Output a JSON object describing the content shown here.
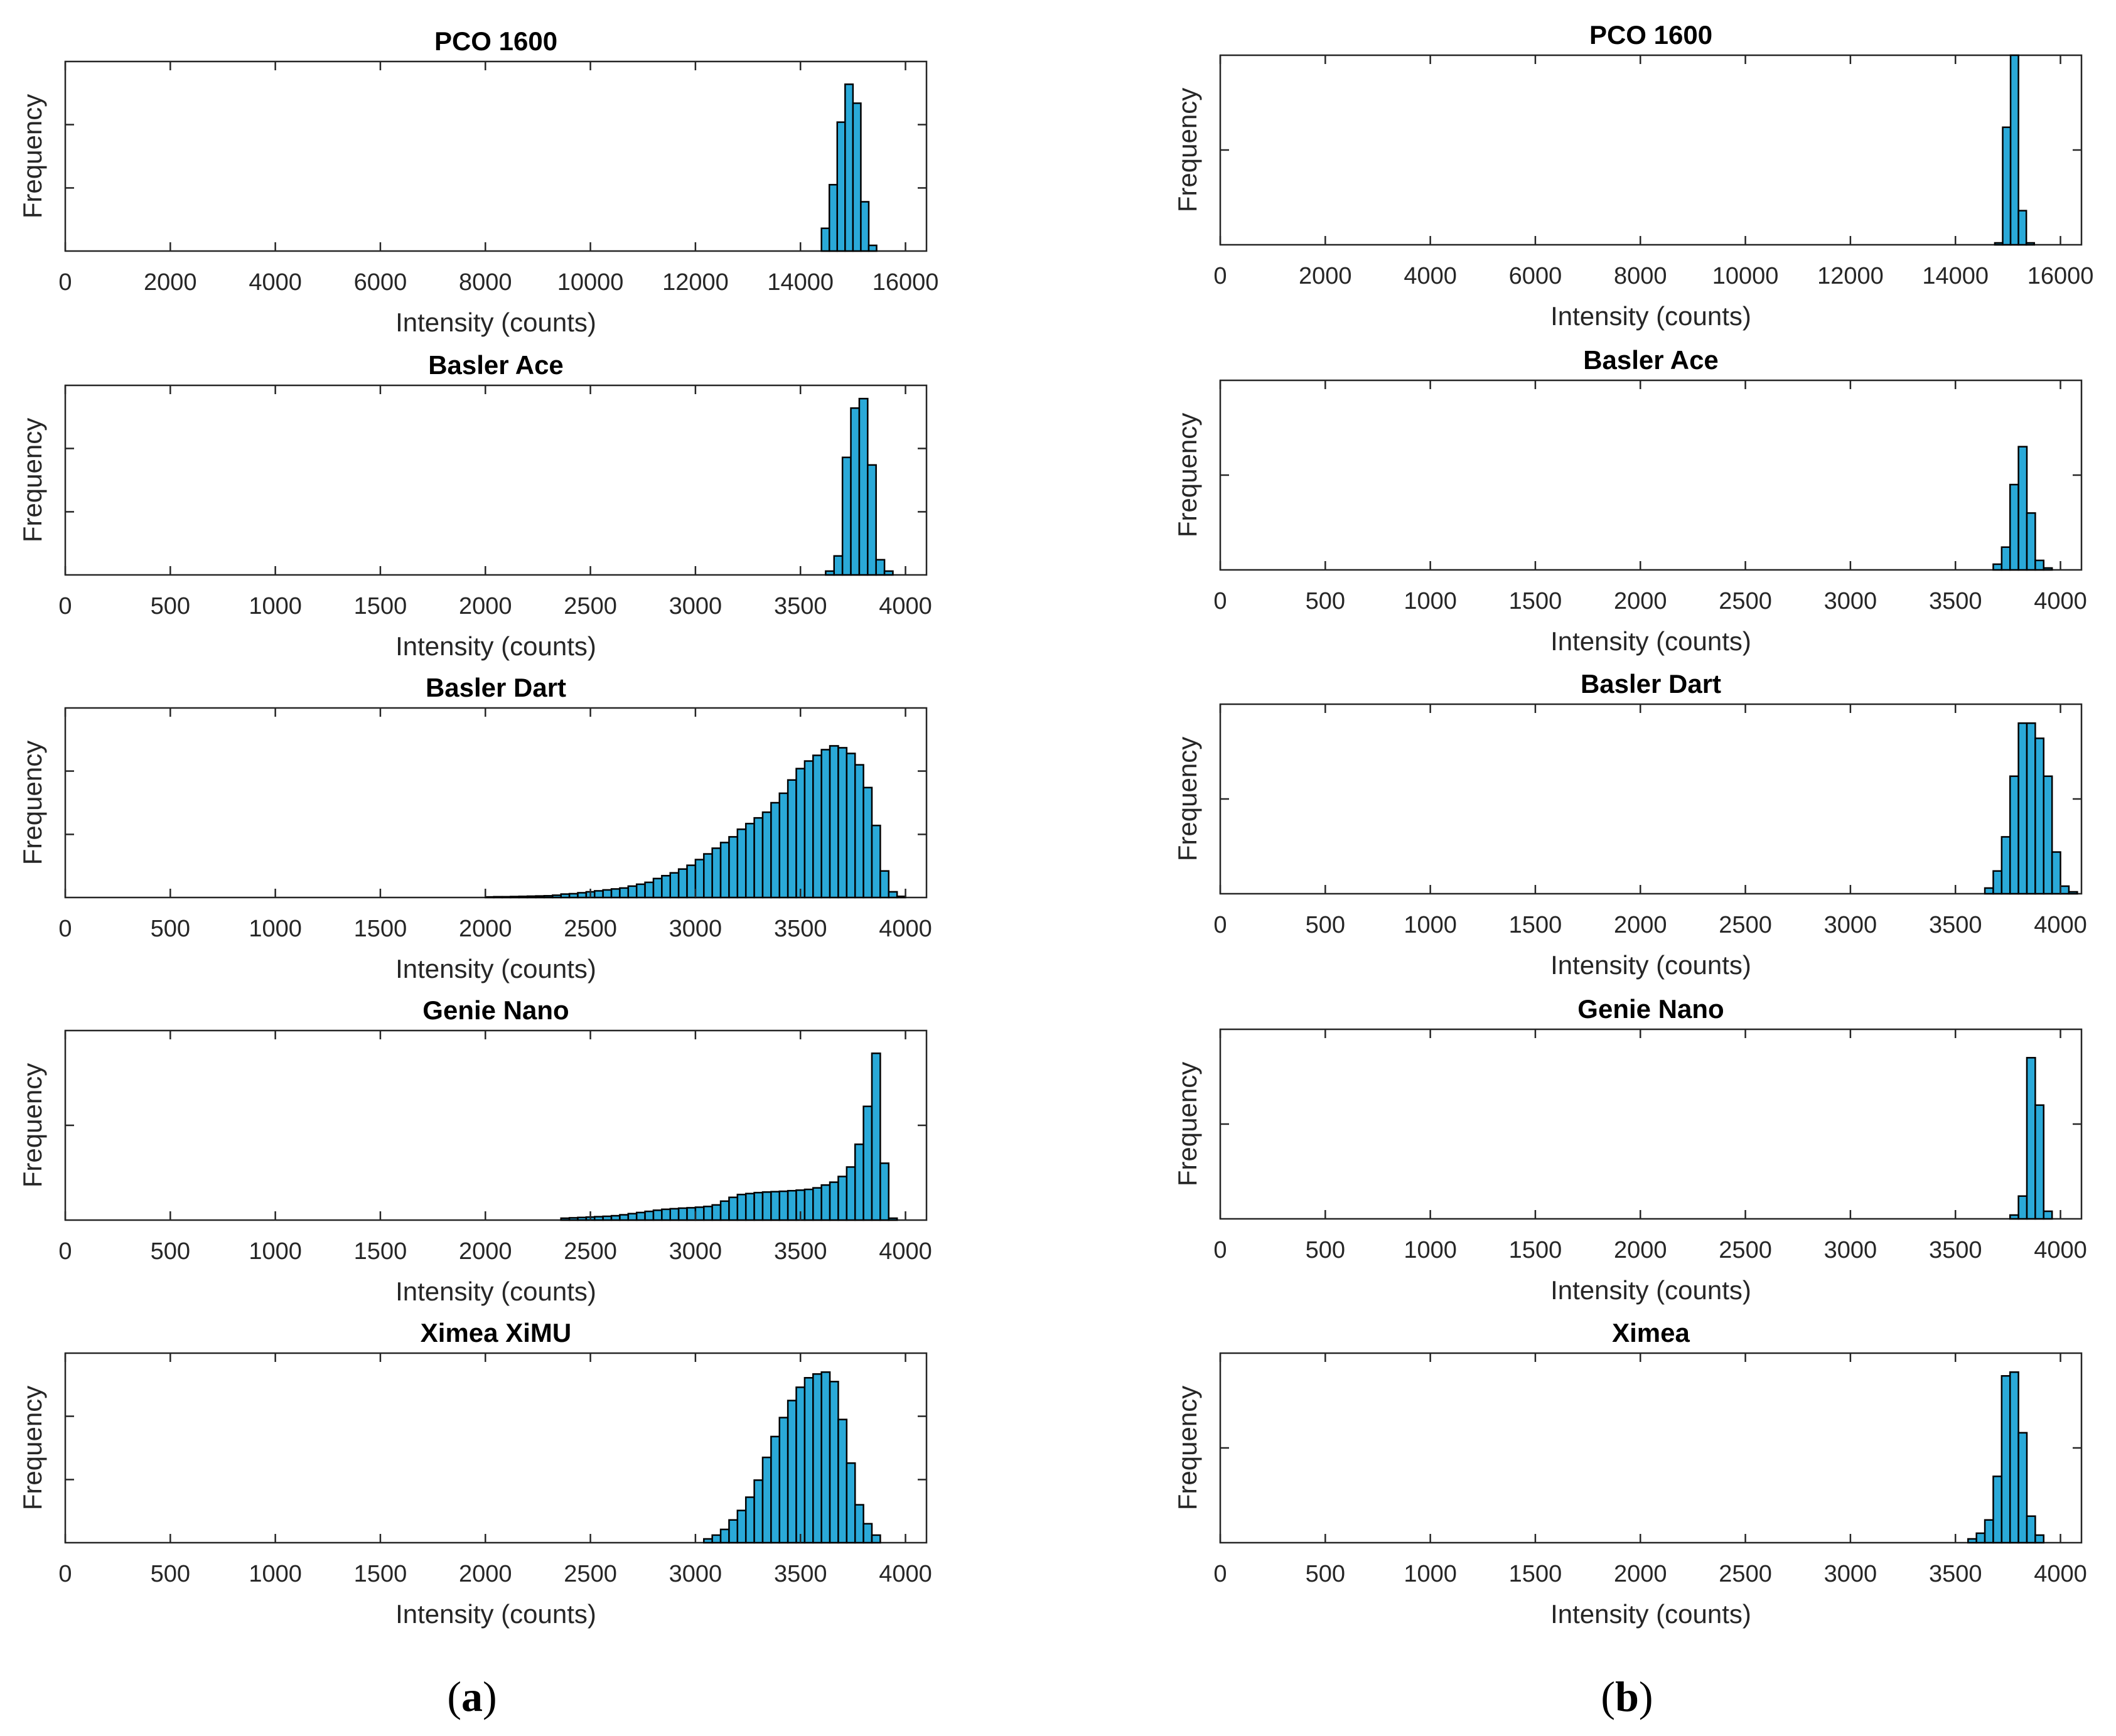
{
  "figure": {
    "panel_a_label": "(a)",
    "panel_a_letter": "a",
    "panel_b_label": "(b)",
    "panel_b_letter": "b",
    "bar_color": "#2aa9d8",
    "paren_open": "(",
    "paren_close": ")"
  },
  "chart_data": [
    {
      "type": "bar",
      "panel": "a",
      "title": "PCO 1600",
      "xlabel": "Intensity (counts)",
      "ylabel": "Frequency",
      "xlim": [
        0,
        16400
      ],
      "ylim": [
        0,
        1.0
      ],
      "xticks": [
        0,
        2000,
        4000,
        6000,
        8000,
        10000,
        12000,
        14000,
        16000
      ],
      "yticks": [
        0.333,
        0.667
      ],
      "bin_width": 150,
      "bins": [
        [
          14400,
          0.12
        ],
        [
          14550,
          0.35
        ],
        [
          14700,
          0.68
        ],
        [
          14850,
          0.88
        ],
        [
          15000,
          0.78
        ],
        [
          15150,
          0.26
        ],
        [
          15300,
          0.03
        ]
      ]
    },
    {
      "type": "bar",
      "panel": "a",
      "title": "Basler Ace",
      "xlabel": "Intensity (counts)",
      "ylabel": "Frequency",
      "xlim": [
        0,
        4100
      ],
      "ylim": [
        0,
        1.0
      ],
      "xticks": [
        0,
        500,
        1000,
        1500,
        2000,
        2500,
        3000,
        3500,
        4000
      ],
      "yticks": [
        0.333,
        0.667
      ],
      "bin_width": 40,
      "bins": [
        [
          3620,
          0.02
        ],
        [
          3660,
          0.1
        ],
        [
          3700,
          0.62
        ],
        [
          3740,
          0.88
        ],
        [
          3780,
          0.93
        ],
        [
          3820,
          0.58
        ],
        [
          3860,
          0.08
        ],
        [
          3900,
          0.02
        ]
      ]
    },
    {
      "type": "bar",
      "panel": "a",
      "title": "Basler Dart",
      "xlabel": "Intensity (counts)",
      "ylabel": "Frequency",
      "xlim": [
        0,
        4100
      ],
      "ylim": [
        0,
        1.0
      ],
      "xticks": [
        0,
        500,
        1000,
        1500,
        2000,
        2500,
        3000,
        3500,
        4000
      ],
      "yticks": [
        0.333,
        0.667
      ],
      "bin_width": 40,
      "bins": [
        [
          2000,
          0.003
        ],
        [
          2040,
          0.004
        ],
        [
          2080,
          0.004
        ],
        [
          2120,
          0.005
        ],
        [
          2160,
          0.006
        ],
        [
          2200,
          0.007
        ],
        [
          2240,
          0.008
        ],
        [
          2280,
          0.009
        ],
        [
          2320,
          0.012
        ],
        [
          2360,
          0.018
        ],
        [
          2400,
          0.02
        ],
        [
          2440,
          0.025
        ],
        [
          2480,
          0.03
        ],
        [
          2520,
          0.035
        ],
        [
          2560,
          0.04
        ],
        [
          2600,
          0.045
        ],
        [
          2640,
          0.05
        ],
        [
          2680,
          0.06
        ],
        [
          2720,
          0.07
        ],
        [
          2760,
          0.08
        ],
        [
          2800,
          0.1
        ],
        [
          2840,
          0.115
        ],
        [
          2880,
          0.13
        ],
        [
          2920,
          0.15
        ],
        [
          2960,
          0.17
        ],
        [
          3000,
          0.2
        ],
        [
          3040,
          0.23
        ],
        [
          3080,
          0.26
        ],
        [
          3120,
          0.29
        ],
        [
          3160,
          0.32
        ],
        [
          3200,
          0.36
        ],
        [
          3240,
          0.39
        ],
        [
          3280,
          0.42
        ],
        [
          3320,
          0.45
        ],
        [
          3360,
          0.5
        ],
        [
          3400,
          0.55
        ],
        [
          3440,
          0.62
        ],
        [
          3480,
          0.68
        ],
        [
          3520,
          0.72
        ],
        [
          3560,
          0.75
        ],
        [
          3600,
          0.78
        ],
        [
          3640,
          0.8
        ],
        [
          3680,
          0.79
        ],
        [
          3720,
          0.76
        ],
        [
          3760,
          0.7
        ],
        [
          3800,
          0.58
        ],
        [
          3840,
          0.38
        ],
        [
          3880,
          0.14
        ],
        [
          3920,
          0.03
        ],
        [
          3960,
          0.006
        ]
      ]
    },
    {
      "type": "bar",
      "panel": "a",
      "title": "Genie Nano",
      "xlabel": "Intensity (counts)",
      "ylabel": "Frequency",
      "xlim": [
        0,
        4100
      ],
      "ylim": [
        0,
        1.0
      ],
      "xticks": [
        0,
        500,
        1000,
        1500,
        2000,
        2500,
        3000,
        3500,
        4000
      ],
      "yticks": [
        0.5
      ],
      "bin_width": 40,
      "bins": [
        [
          2360,
          0.01
        ],
        [
          2400,
          0.012
        ],
        [
          2440,
          0.014
        ],
        [
          2480,
          0.016
        ],
        [
          2520,
          0.018
        ],
        [
          2560,
          0.02
        ],
        [
          2600,
          0.023
        ],
        [
          2640,
          0.028
        ],
        [
          2680,
          0.034
        ],
        [
          2720,
          0.04
        ],
        [
          2760,
          0.046
        ],
        [
          2800,
          0.052
        ],
        [
          2840,
          0.057
        ],
        [
          2880,
          0.06
        ],
        [
          2920,
          0.063
        ],
        [
          2960,
          0.065
        ],
        [
          3000,
          0.068
        ],
        [
          3040,
          0.072
        ],
        [
          3080,
          0.08
        ],
        [
          3120,
          0.1
        ],
        [
          3160,
          0.12
        ],
        [
          3200,
          0.135
        ],
        [
          3240,
          0.14
        ],
        [
          3280,
          0.145
        ],
        [
          3320,
          0.148
        ],
        [
          3360,
          0.15
        ],
        [
          3400,
          0.152
        ],
        [
          3440,
          0.155
        ],
        [
          3480,
          0.158
        ],
        [
          3520,
          0.162
        ],
        [
          3560,
          0.17
        ],
        [
          3600,
          0.185
        ],
        [
          3640,
          0.2
        ],
        [
          3680,
          0.23
        ],
        [
          3720,
          0.28
        ],
        [
          3760,
          0.4
        ],
        [
          3800,
          0.6
        ],
        [
          3840,
          0.88
        ],
        [
          3880,
          0.3
        ],
        [
          3920,
          0.01
        ]
      ]
    },
    {
      "type": "bar",
      "panel": "a",
      "title": "Ximea XiMU",
      "xlabel": "Intensity (counts)",
      "ylabel": "Frequency",
      "xlim": [
        0,
        4100
      ],
      "ylim": [
        0,
        1.0
      ],
      "xticks": [
        0,
        500,
        1000,
        1500,
        2000,
        2500,
        3000,
        3500,
        4000
      ],
      "yticks": [
        0.333,
        0.667
      ],
      "bin_width": 40,
      "bins": [
        [
          3040,
          0.02
        ],
        [
          3080,
          0.04
        ],
        [
          3120,
          0.07
        ],
        [
          3160,
          0.12
        ],
        [
          3200,
          0.17
        ],
        [
          3240,
          0.24
        ],
        [
          3280,
          0.33
        ],
        [
          3320,
          0.45
        ],
        [
          3360,
          0.56
        ],
        [
          3400,
          0.66
        ],
        [
          3440,
          0.75
        ],
        [
          3480,
          0.82
        ],
        [
          3520,
          0.87
        ],
        [
          3560,
          0.89
        ],
        [
          3600,
          0.9
        ],
        [
          3640,
          0.85
        ],
        [
          3680,
          0.65
        ],
        [
          3720,
          0.42
        ],
        [
          3760,
          0.2
        ],
        [
          3800,
          0.1
        ],
        [
          3840,
          0.04
        ]
      ]
    },
    {
      "type": "bar",
      "panel": "b",
      "title": "PCO 1600",
      "xlabel": "Intensity (counts)",
      "ylabel": "Frequency",
      "xlim": [
        0,
        16400
      ],
      "ylim": [
        0,
        1.0
      ],
      "xticks": [
        0,
        2000,
        4000,
        6000,
        8000,
        10000,
        12000,
        14000,
        16000
      ],
      "yticks": [
        0.5
      ],
      "bin_width": 150,
      "bins": [
        [
          14750,
          0.01
        ],
        [
          14900,
          0.62
        ],
        [
          15050,
          1.0
        ],
        [
          15200,
          0.18
        ],
        [
          15350,
          0.01
        ]
      ]
    },
    {
      "type": "bar",
      "panel": "b",
      "title": "Basler Ace",
      "xlabel": "Intensity (counts)",
      "ylabel": "Frequency",
      "xlim": [
        0,
        4100
      ],
      "ylim": [
        0,
        1.0
      ],
      "xticks": [
        0,
        500,
        1000,
        1500,
        2000,
        2500,
        3000,
        3500,
        4000
      ],
      "yticks": [
        0.5
      ],
      "bin_width": 40,
      "bins": [
        [
          3680,
          0.03
        ],
        [
          3720,
          0.12
        ],
        [
          3760,
          0.45
        ],
        [
          3800,
          0.65
        ],
        [
          3840,
          0.3
        ],
        [
          3880,
          0.05
        ],
        [
          3920,
          0.01
        ]
      ]
    },
    {
      "type": "bar",
      "panel": "b",
      "title": "Basler Dart",
      "xlabel": "Intensity (counts)",
      "ylabel": "Frequency",
      "xlim": [
        0,
        4100
      ],
      "ylim": [
        0,
        1.0
      ],
      "xticks": [
        0,
        500,
        1000,
        1500,
        2000,
        2500,
        3000,
        3500,
        4000
      ],
      "yticks": [
        0.5
      ],
      "bin_width": 40,
      "bins": [
        [
          3640,
          0.03
        ],
        [
          3680,
          0.12
        ],
        [
          3720,
          0.3
        ],
        [
          3760,
          0.62
        ],
        [
          3800,
          0.9
        ],
        [
          3840,
          0.9
        ],
        [
          3880,
          0.82
        ],
        [
          3920,
          0.62
        ],
        [
          3960,
          0.22
        ],
        [
          4000,
          0.04
        ],
        [
          4040,
          0.01
        ]
      ]
    },
    {
      "type": "bar",
      "panel": "b",
      "title": "Genie Nano",
      "xlabel": "Intensity (counts)",
      "ylabel": "Frequency",
      "xlim": [
        0,
        4100
      ],
      "ylim": [
        0,
        1.0
      ],
      "xticks": [
        0,
        500,
        1000,
        1500,
        2000,
        2500,
        3000,
        3500,
        4000
      ],
      "yticks": [
        0.5
      ],
      "bin_width": 40,
      "bins": [
        [
          3760,
          0.02
        ],
        [
          3800,
          0.12
        ],
        [
          3840,
          0.85
        ],
        [
          3880,
          0.6
        ],
        [
          3920,
          0.04
        ]
      ]
    },
    {
      "type": "bar",
      "panel": "b",
      "title": "Ximea",
      "xlabel": "Intensity (counts)",
      "ylabel": "Frequency",
      "xlim": [
        0,
        4100
      ],
      "ylim": [
        0,
        1.0
      ],
      "xticks": [
        0,
        500,
        1000,
        1500,
        2000,
        2500,
        3000,
        3500,
        4000
      ],
      "yticks": [
        0.5
      ],
      "bin_width": 40,
      "bins": [
        [
          3560,
          0.02
        ],
        [
          3600,
          0.05
        ],
        [
          3640,
          0.12
        ],
        [
          3680,
          0.35
        ],
        [
          3720,
          0.88
        ],
        [
          3760,
          0.9
        ],
        [
          3800,
          0.58
        ],
        [
          3840,
          0.14
        ],
        [
          3880,
          0.04
        ]
      ]
    }
  ]
}
